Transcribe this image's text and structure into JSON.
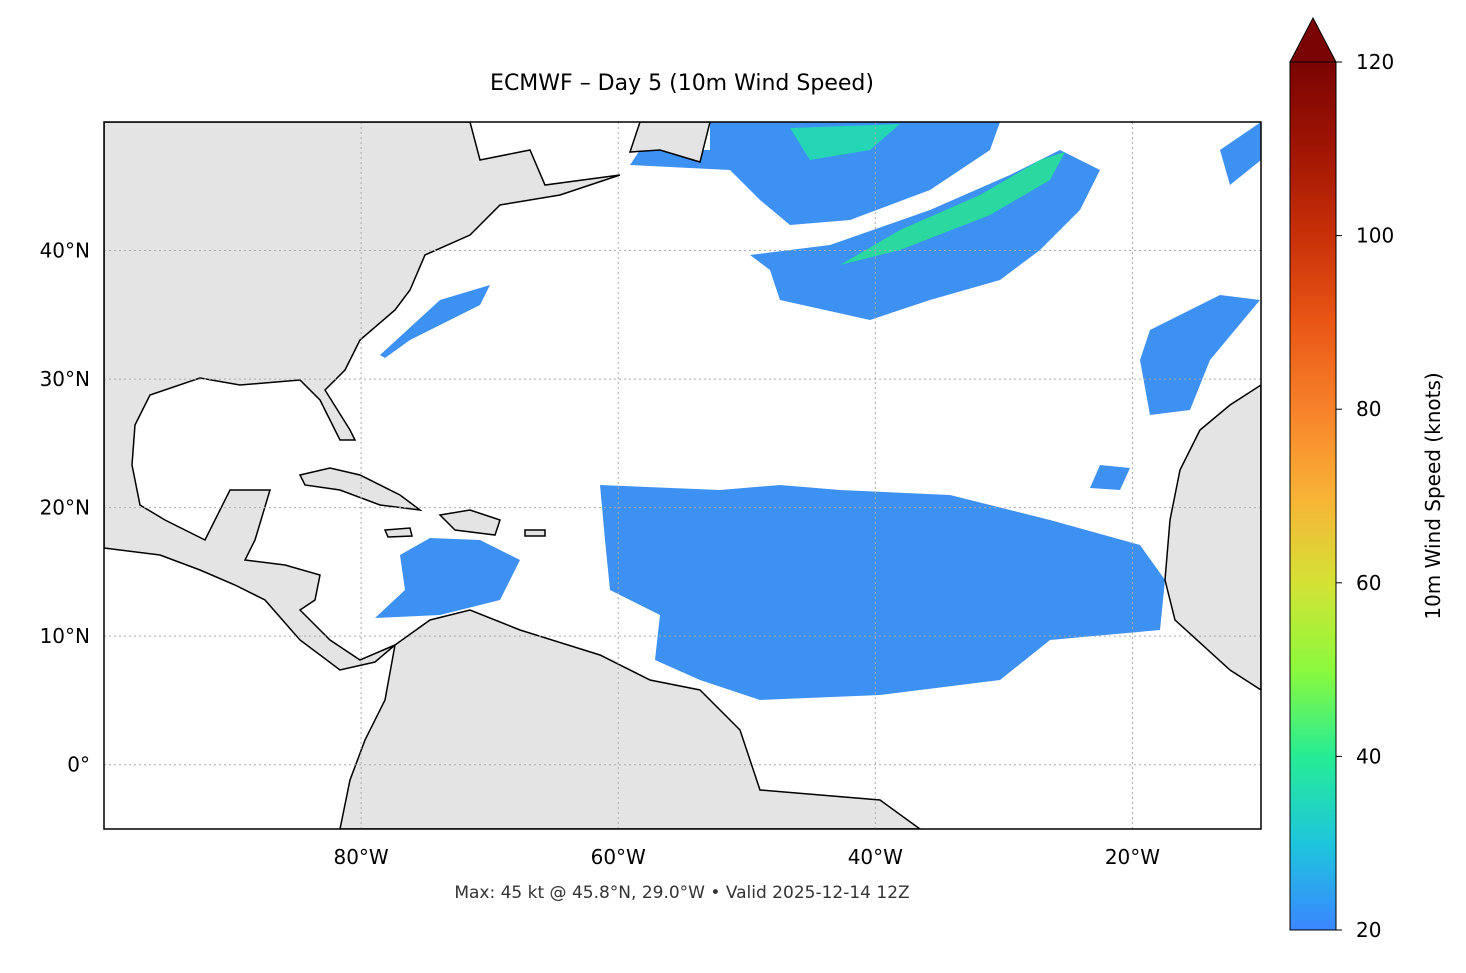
{
  "map": {
    "title": "ECMWF – Day 5 (10m Wind Speed)",
    "footer": "Max: 45 kt @ 45.8°N, 29.0°W • Valid 2025-12-14 12Z",
    "xlim": [
      -100,
      -10
    ],
    "ylim": [
      -5,
      50
    ],
    "xticks": [
      {
        "value": -80,
        "label": "80°W"
      },
      {
        "value": -60,
        "label": "60°W"
      },
      {
        "value": -40,
        "label": "40°W"
      },
      {
        "value": -20,
        "label": "20°W"
      }
    ],
    "yticks": [
      {
        "value": 0,
        "label": "0°"
      },
      {
        "value": 10,
        "label": "10°N"
      },
      {
        "value": 20,
        "label": "20°N"
      },
      {
        "value": 30,
        "label": "30°N"
      },
      {
        "value": 40,
        "label": "40°N"
      }
    ],
    "grid": true,
    "colorbar": {
      "label": "10m Wind Speed (knots)",
      "clim": [
        20,
        120
      ],
      "ticks": [
        20,
        40,
        60,
        80,
        100,
        120
      ],
      "colormap": [
        "#3b86ff",
        "#1ec6dc",
        "#26ec94",
        "#8cf93c",
        "#d4e235",
        "#f9b236",
        "#f7822a",
        "#e95615",
        "#c83008",
        "#a01503",
        "#7a0403"
      ],
      "extend_color": "#7a0403"
    }
  }
}
